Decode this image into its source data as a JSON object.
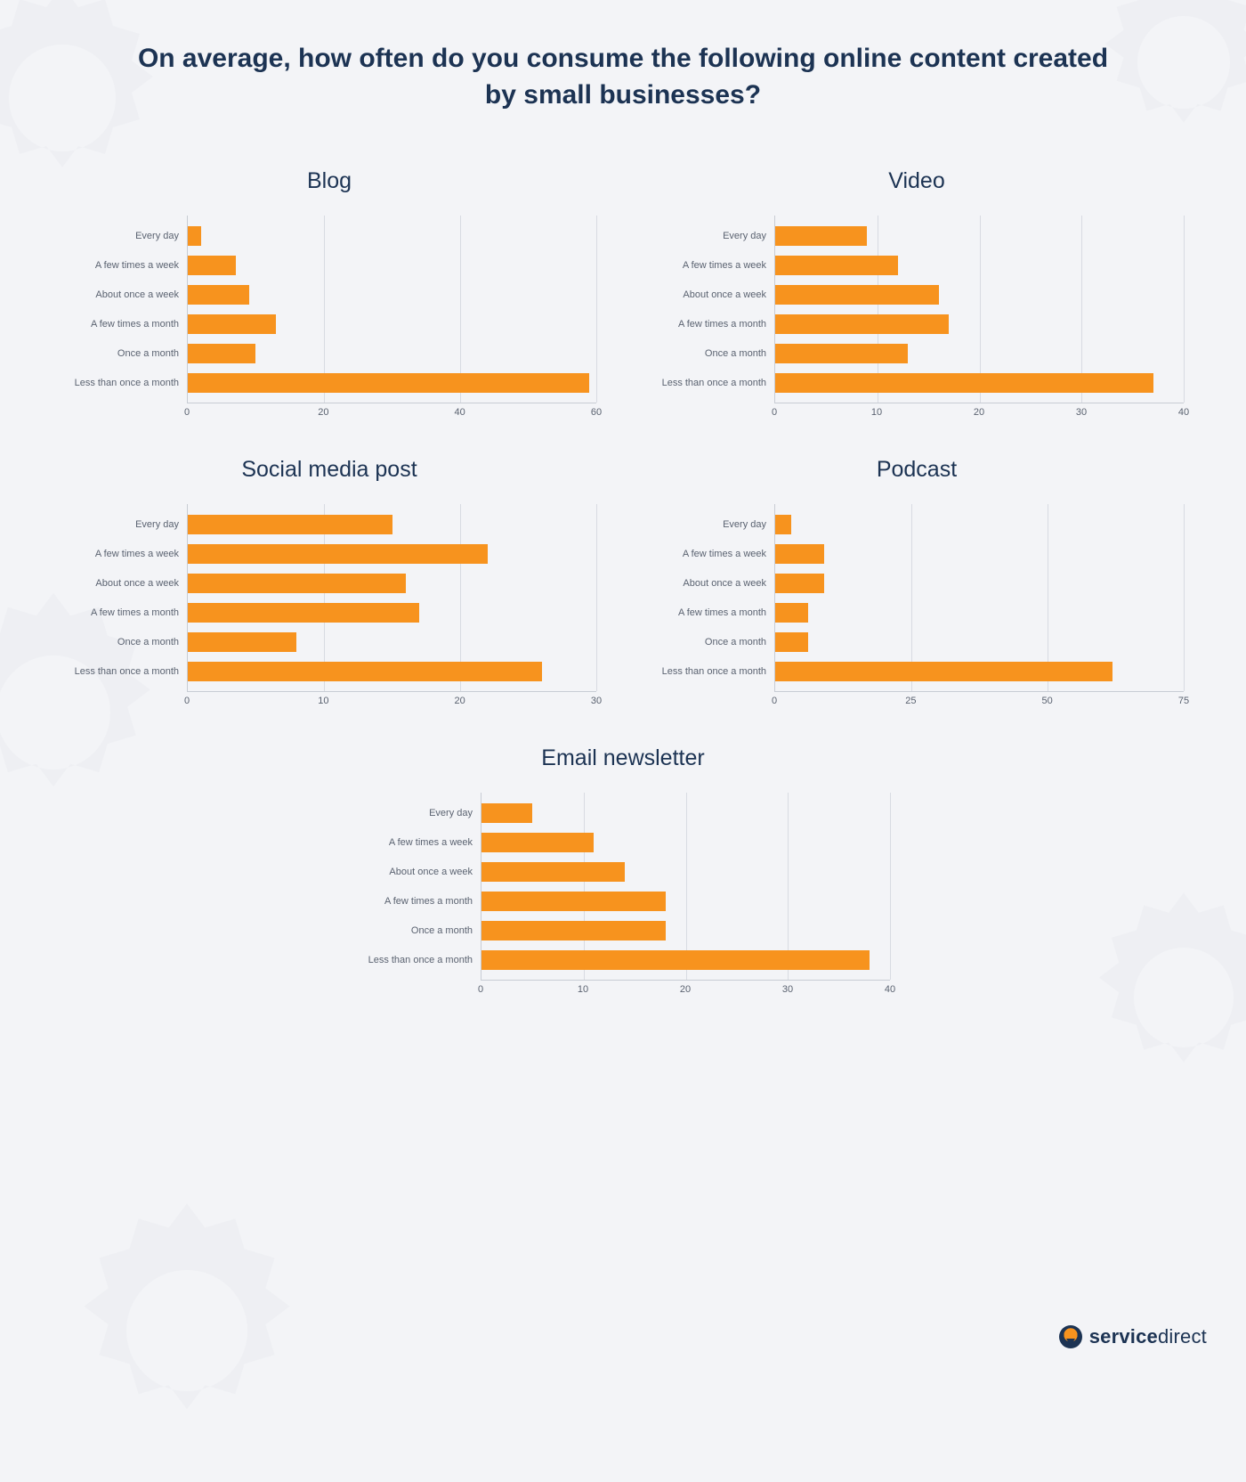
{
  "title": "On average, how often do you consume the following online content created by small businesses?",
  "background_color": "#f3f4f7",
  "title_color": "#1c3353",
  "title_fontsize": 30,
  "chart_title_fontsize": 25,
  "chart_title_color": "#1c3353",
  "axis_label_fontsize": 11,
  "axis_label_color": "#5a6270",
  "bar_color": "#f7931e",
  "grid_color": "#d8dbe2",
  "axis_line_color": "#c8ccd4",
  "categories": [
    "Every day",
    "A few times a week",
    "About once a week",
    "A few times a month",
    "Once a month",
    "Less than once a month"
  ],
  "charts": [
    {
      "title": "Blog",
      "type": "horizontal_bar",
      "xlim": [
        0,
        60
      ],
      "xtick_step": 20,
      "values": [
        2,
        7,
        9,
        13,
        10,
        59
      ]
    },
    {
      "title": "Video",
      "type": "horizontal_bar",
      "xlim": [
        0,
        40
      ],
      "xtick_step": 10,
      "values": [
        9,
        12,
        16,
        17,
        13,
        37
      ]
    },
    {
      "title": "Social media post",
      "type": "horizontal_bar",
      "xlim": [
        0,
        30
      ],
      "xtick_step": 10,
      "values": [
        15,
        22,
        16,
        17,
        8,
        26
      ]
    },
    {
      "title": "Podcast",
      "type": "horizontal_bar",
      "xlim": [
        0,
        75
      ],
      "xtick_step": 25,
      "values": [
        3,
        9,
        9,
        6,
        6,
        62
      ]
    },
    {
      "title": "Email newsletter",
      "type": "horizontal_bar",
      "xlim": [
        0,
        40
      ],
      "xtick_step": 10,
      "values": [
        5,
        11,
        14,
        18,
        18,
        38
      ]
    }
  ],
  "logo": {
    "brand_bold": "service",
    "brand_rest": "direct",
    "color": "#1c3353",
    "accent": "#f7931e"
  }
}
